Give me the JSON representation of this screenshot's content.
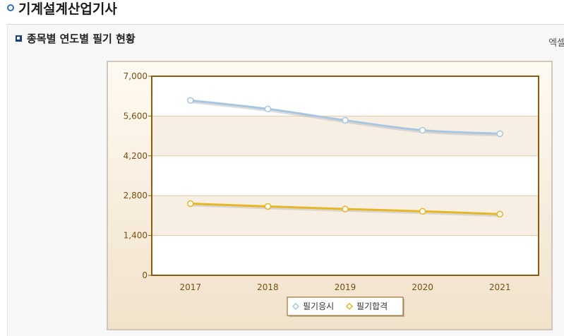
{
  "page": {
    "title": "기계설계산업기사",
    "section_title": "종목별 연도별 필기 현황",
    "excel_link": "엑셀"
  },
  "chart_data": {
    "type": "line",
    "title": "",
    "xlabel": "",
    "ylabel": "",
    "categories": [
      "2017",
      "2018",
      "2019",
      "2020",
      "2021"
    ],
    "ylim": [
      0,
      7000
    ],
    "yticks": [
      "0",
      "1,400",
      "2,800",
      "4,200",
      "5,600",
      "7,000"
    ],
    "ytick_values": [
      0,
      1400,
      2800,
      4200,
      5600,
      7000
    ],
    "grid": true,
    "legend_position": "bottom-center",
    "series": [
      {
        "name": "필기응시",
        "values": [
          6150,
          5850,
          5450,
          5100,
          4980
        ],
        "color": "#a9c6e0"
      },
      {
        "name": "필기합격",
        "values": [
          2520,
          2420,
          2330,
          2250,
          2150
        ],
        "color": "#e5b724"
      }
    ],
    "colors": {
      "plot_border": "#8a5a0e",
      "band": "#f8efe4",
      "gridline": "#e2cba5",
      "tick_text": "#7a4f10"
    }
  }
}
